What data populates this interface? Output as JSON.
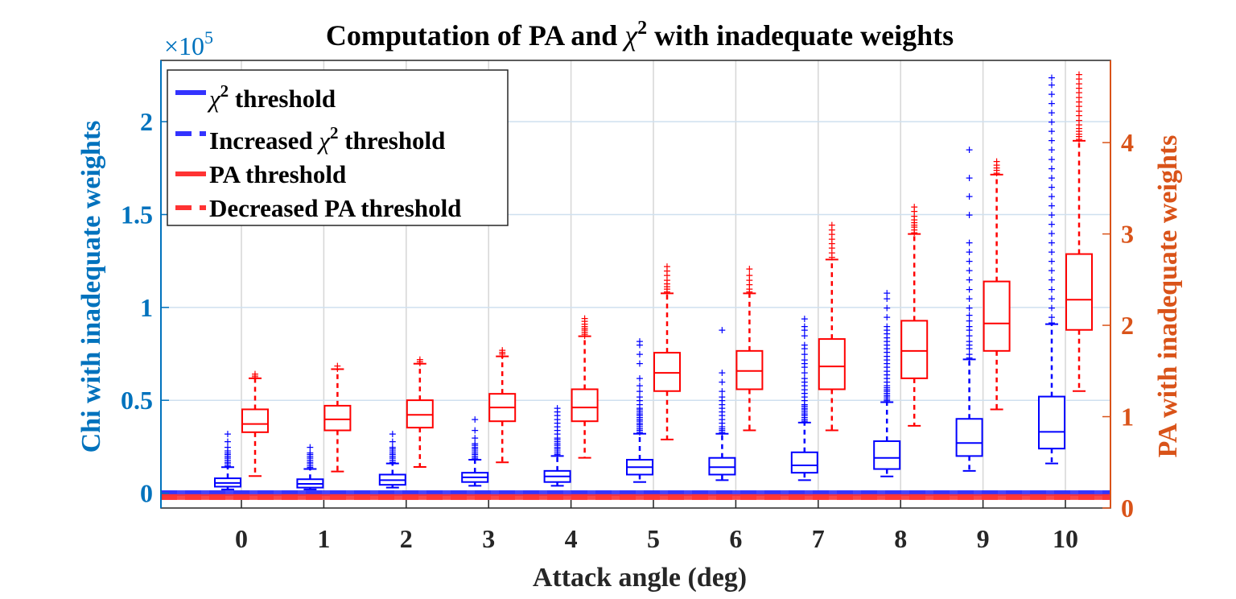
{
  "chart_data": {
    "type": "box",
    "title_prefix": "Computation of PA and ",
    "title_symbol": "χ",
    "title_sup": "2",
    "title_suffix": " with inadequate weights",
    "xlabel": "Attack angle (deg)",
    "ylabel_left": "Chi with inadequate weights",
    "ylabel_right": "PA with inadequate weights",
    "exponent_prefix": "×10",
    "exponent_power": "5",
    "categories": [
      "0",
      "1",
      "2",
      "3",
      "4",
      "5",
      "6",
      "7",
      "8",
      "9",
      "10"
    ],
    "left_axis": {
      "range_scaled": [
        -0.08,
        2.33
      ],
      "ticks": [
        0,
        0.5,
        1,
        1.5,
        2
      ],
      "tick_labels": [
        "0",
        "0.5",
        "1",
        "1.5",
        "2"
      ],
      "color": "#0072BD"
    },
    "right_axis": {
      "range": [
        0,
        4.9
      ],
      "ticks": [
        0,
        1,
        2,
        3,
        4
      ],
      "tick_labels": [
        "0",
        "1",
        "2",
        "3",
        "4"
      ],
      "color": "#D95319"
    },
    "grid": true,
    "series": [
      {
        "name": "Chi",
        "axis": "left",
        "color": "#0000FF",
        "boxes": [
          {
            "whisker_low": 0.02,
            "q1": 0.035,
            "median": 0.055,
            "q3": 0.08,
            "whisker_high": 0.14,
            "outliers": [
              0.15,
              0.16,
              0.17,
              0.18,
              0.19,
              0.2,
              0.21,
              0.22,
              0.23,
              0.25,
              0.28,
              0.32
            ]
          },
          {
            "whisker_low": 0.02,
            "q1": 0.03,
            "median": 0.05,
            "q3": 0.075,
            "whisker_high": 0.13,
            "outliers": [
              0.14,
              0.15,
              0.16,
              0.17,
              0.18,
              0.19,
              0.2,
              0.21,
              0.22,
              0.25
            ]
          },
          {
            "whisker_low": 0.03,
            "q1": 0.045,
            "median": 0.07,
            "q3": 0.1,
            "whisker_high": 0.16,
            "outliers": [
              0.17,
              0.18,
              0.19,
              0.2,
              0.21,
              0.22,
              0.23,
              0.24,
              0.25,
              0.28,
              0.32
            ]
          },
          {
            "whisker_low": 0.04,
            "q1": 0.06,
            "median": 0.085,
            "q3": 0.11,
            "whisker_high": 0.18,
            "outliers": [
              0.19,
              0.2,
              0.21,
              0.22,
              0.23,
              0.24,
              0.25,
              0.26,
              0.27,
              0.3,
              0.34,
              0.4
            ]
          },
          {
            "whisker_low": 0.04,
            "q1": 0.06,
            "median": 0.09,
            "q3": 0.12,
            "whisker_high": 0.2,
            "outliers": [
              0.21,
              0.22,
              0.23,
              0.24,
              0.25,
              0.26,
              0.27,
              0.28,
              0.29,
              0.3,
              0.32,
              0.34,
              0.36,
              0.38,
              0.4,
              0.42,
              0.44,
              0.46
            ]
          },
          {
            "whisker_low": 0.06,
            "q1": 0.1,
            "median": 0.14,
            "q3": 0.18,
            "whisker_high": 0.32,
            "outliers": [
              0.33,
              0.34,
              0.35,
              0.36,
              0.37,
              0.38,
              0.39,
              0.4,
              0.41,
              0.42,
              0.43,
              0.44,
              0.45,
              0.46,
              0.48,
              0.5,
              0.52,
              0.55,
              0.58,
              0.62,
              0.7,
              0.75,
              0.8,
              0.82
            ]
          },
          {
            "whisker_low": 0.07,
            "q1": 0.1,
            "median": 0.14,
            "q3": 0.19,
            "whisker_high": 0.32,
            "outliers": [
              0.33,
              0.34,
              0.35,
              0.36,
              0.38,
              0.4,
              0.42,
              0.44,
              0.46,
              0.48,
              0.5,
              0.52,
              0.55,
              0.6,
              0.65,
              0.88
            ]
          },
          {
            "whisker_low": 0.07,
            "q1": 0.11,
            "median": 0.15,
            "q3": 0.22,
            "whisker_high": 0.38,
            "outliers": [
              0.39,
              0.4,
              0.41,
              0.42,
              0.43,
              0.44,
              0.45,
              0.46,
              0.47,
              0.48,
              0.5,
              0.52,
              0.54,
              0.56,
              0.58,
              0.6,
              0.62,
              0.65,
              0.68,
              0.7,
              0.72,
              0.75,
              0.78,
              0.8,
              0.85,
              0.88,
              0.9,
              0.94
            ]
          },
          {
            "whisker_low": 0.09,
            "q1": 0.13,
            "median": 0.19,
            "q3": 0.28,
            "whisker_high": 0.49,
            "outliers": [
              0.5,
              0.51,
              0.52,
              0.53,
              0.54,
              0.55,
              0.56,
              0.57,
              0.58,
              0.6,
              0.62,
              0.64,
              0.66,
              0.68,
              0.7,
              0.72,
              0.74,
              0.76,
              0.78,
              0.8,
              0.82,
              0.84,
              0.86,
              0.88,
              0.9,
              0.95,
              1.0,
              1.05,
              1.08
            ]
          },
          {
            "whisker_low": 0.12,
            "q1": 0.2,
            "median": 0.27,
            "q3": 0.4,
            "whisker_high": 0.72,
            "outliers": [
              0.73,
              0.75,
              0.78,
              0.8,
              0.82,
              0.85,
              0.88,
              0.9,
              0.93,
              0.96,
              1.0,
              1.05,
              1.1,
              1.15,
              1.2,
              1.25,
              1.3,
              1.35,
              1.5,
              1.6,
              1.7,
              1.85
            ]
          },
          {
            "whisker_low": 0.16,
            "q1": 0.24,
            "median": 0.33,
            "q3": 0.52,
            "whisker_high": 0.91,
            "outliers": [
              0.92,
              0.95,
              1.0,
              1.05,
              1.1,
              1.15,
              1.2,
              1.25,
              1.3,
              1.35,
              1.4,
              1.45,
              1.5,
              1.55,
              1.6,
              1.65,
              1.7,
              1.75,
              1.8,
              1.85,
              1.9,
              1.95,
              2.0,
              2.05,
              2.1,
              2.15,
              2.2,
              2.24
            ]
          }
        ]
      },
      {
        "name": "PA",
        "axis": "right",
        "color": "#FF0000",
        "boxes": [
          {
            "whisker_low": 0.35,
            "q1": 0.83,
            "median": 0.92,
            "q3": 1.08,
            "whisker_high": 1.42,
            "outliers": [
              1.43,
              1.45,
              1.47
            ]
          },
          {
            "whisker_low": 0.4,
            "q1": 0.85,
            "median": 0.97,
            "q3": 1.12,
            "whisker_high": 1.52,
            "outliers": [
              1.53,
              1.56
            ]
          },
          {
            "whisker_low": 0.45,
            "q1": 0.88,
            "median": 1.02,
            "q3": 1.18,
            "whisker_high": 1.58,
            "outliers": [
              1.59,
              1.61,
              1.63
            ]
          },
          {
            "whisker_low": 0.5,
            "q1": 0.95,
            "median": 1.1,
            "q3": 1.25,
            "whisker_high": 1.66,
            "outliers": [
              1.67,
              1.69,
              1.71,
              1.73
            ]
          },
          {
            "whisker_low": 0.55,
            "q1": 0.95,
            "median": 1.1,
            "q3": 1.3,
            "whisker_high": 1.88,
            "outliers": [
              1.89,
              1.91,
              1.93,
              1.95,
              1.97,
              1.99,
              2.02,
              2.05,
              2.08
            ]
          },
          {
            "whisker_low": 0.75,
            "q1": 1.28,
            "median": 1.48,
            "q3": 1.7,
            "whisker_high": 2.35,
            "outliers": [
              2.37,
              2.4,
              2.43,
              2.46,
              2.5,
              2.55,
              2.6,
              2.65
            ]
          },
          {
            "whisker_low": 0.85,
            "q1": 1.3,
            "median": 1.5,
            "q3": 1.72,
            "whisker_high": 2.35,
            "outliers": [
              2.37,
              2.4,
              2.45,
              2.5,
              2.55,
              2.62
            ]
          },
          {
            "whisker_low": 0.85,
            "q1": 1.3,
            "median": 1.55,
            "q3": 1.85,
            "whisker_high": 2.72,
            "outliers": [
              2.75,
              2.8,
              2.85,
              2.9,
              2.95,
              3.0,
              3.05,
              3.1
            ]
          },
          {
            "whisker_low": 0.9,
            "q1": 1.42,
            "median": 1.72,
            "q3": 2.05,
            "whisker_high": 3.0,
            "outliers": [
              3.02,
              3.05,
              3.08,
              3.1,
              3.13,
              3.16,
              3.2,
              3.25,
              3.3
            ]
          },
          {
            "whisker_low": 1.08,
            "q1": 1.72,
            "median": 2.02,
            "q3": 2.48,
            "whisker_high": 3.65,
            "outliers": [
              3.67,
              3.7,
              3.73,
              3.76,
              3.8
            ]
          },
          {
            "whisker_low": 1.28,
            "q1": 1.95,
            "median": 2.28,
            "q3": 2.78,
            "whisker_high": 4.02,
            "outliers": [
              4.04,
              4.07,
              4.1,
              4.13,
              4.16,
              4.2,
              4.25,
              4.3,
              4.35,
              4.4,
              4.45,
              4.5,
              4.55,
              4.6,
              4.65,
              4.7,
              4.75
            ]
          }
        ]
      }
    ],
    "threshold_lines": [
      {
        "label_prefix": "",
        "label_symbol": "χ",
        "label_sup": "2",
        "label_suffix": " threshold",
        "color": "#3333FF",
        "style": "solid",
        "axis": "left",
        "value_scaled": 0.0
      },
      {
        "label_prefix": "Increased ",
        "label_symbol": "χ",
        "label_sup": "2",
        "label_suffix": " threshold",
        "color": "#3333FF",
        "style": "dashed",
        "axis": "left",
        "value_scaled": 0.0
      },
      {
        "label_prefix": "PA threshold",
        "label_symbol": "",
        "label_sup": "",
        "label_suffix": "",
        "color": "#FF3333",
        "style": "solid",
        "axis": "right",
        "value": 0.12
      },
      {
        "label_prefix": "Decreased PA threshold",
        "label_symbol": "",
        "label_sup": "",
        "label_suffix": "",
        "color": "#FF3333",
        "style": "dashed",
        "axis": "right",
        "value": 0.12
      }
    ],
    "legend_position": "top-left"
  }
}
